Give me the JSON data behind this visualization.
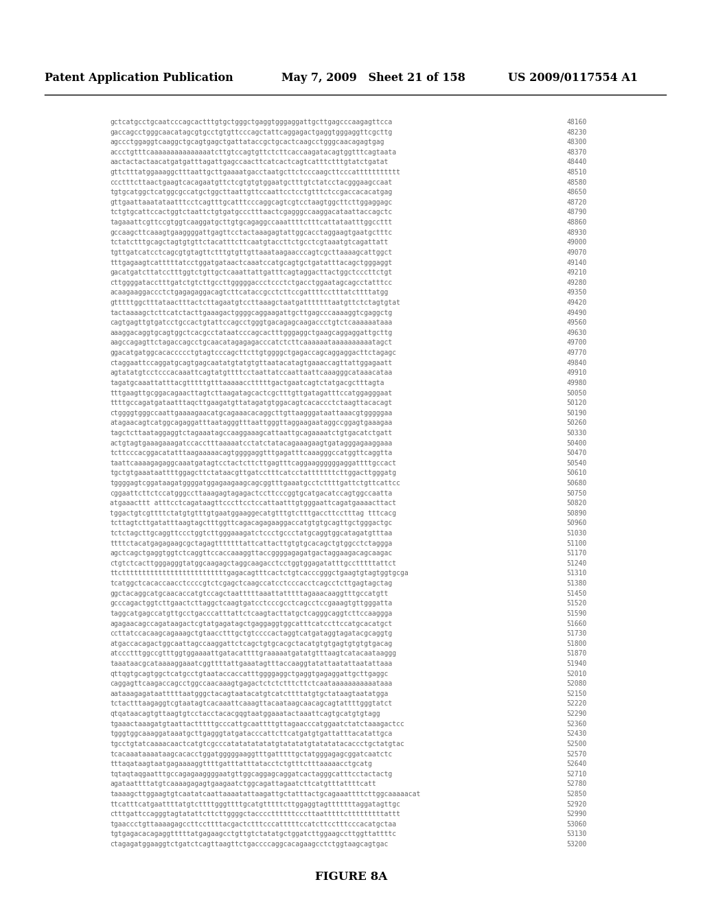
{
  "header_left": "Patent Application Publication",
  "header_mid": "May 7, 2009   Sheet 21 of 158",
  "header_right": "US 2009/0117554 A1",
  "figure_label": "FIGURE 8A",
  "sequences": [
    [
      "gctcatgcctgcaatcccagcactttgtgctgggctgaggtgggaggattgcttgagcccaagagttcca",
      "48160"
    ],
    [
      "gaccagcctgggcaacatagcgtgcctgtgttcccagctattcaggagactgaggtgggaggttcgcttg",
      "48230"
    ],
    [
      "agccctggaggtcaaggctgcagtgagctgattataccgctgcactcaagcctgggcaacagagtgag",
      "48300"
    ],
    [
      "accctgtttcaaaaaaaaaaaaaaatcttgtccagtgttctcttcaccaagatacagtggtttcagtaata",
      "48370"
    ],
    [
      "aactactactaacatgatgatttagattgagccaacttcatcactcagtcatttctttgtatctgatat",
      "48440"
    ],
    [
      "gttctttatggaaaggctttaattgcttgaaaatgacctaatgcttctcccaagcttcccattttttttttt",
      "48510"
    ],
    [
      "ccctttcttaactgaagtcacagaatgttctcgtgtgtggaatgctttgtctatcctacgggaagccaat",
      "48580"
    ],
    [
      "tgtgcatggctcatggcgccatgctggcttaattgttccaattcctcctgtttctccgaccacacatgag",
      "48650"
    ],
    [
      "gttgaattaaatataatttcctcagtttgcatttcccaggcagtcgtcctaagtggcttcttggaggagc",
      "48720"
    ],
    [
      "tctgtgcattccactggtctaattctgtgatgccctttaactcgagggccaaggacataattaccagctc",
      "48790"
    ],
    [
      "tagaaattcgttccgtggtcaaggatgcttgtgcagaggccaaattttctttcattataatttggccttt",
      "48860"
    ],
    [
      "gccaagcttcaaagtgaaggggattgagttcctactaaagagtattggcacctaggaagtgaatgctttc",
      "48930"
    ],
    [
      "tctatctttgcagctagtgtgttctacatttcttcaatgtaccttctgcctcgtaaatgtcagattatt",
      "49000"
    ],
    [
      "tgttgatcatcctcagcgtgtagttctttgtgttgttaaataagaacccagtcgcttaaaagcattggct",
      "49070"
    ],
    [
      "tttgagaagtcatttttatcctggatgataactcaaatccatgcagtgctgatatttacagctgggaggt",
      "49140"
    ],
    [
      "gacatgatcttatcctttggtctgttgctcaaattattgatttcagtaggacttactggctcccttctgt",
      "49210"
    ],
    [
      "cttggggatacctttgatctgtcttgccttgggggaccctccctctgacctggaatagcagcctatttcc",
      "49280"
    ],
    [
      "acaagaaggaccctctgagagaggacagtcttcataccgcctcttccgattttcctttatcttttatgg",
      "49350"
    ],
    [
      "gtttttggctttataactttactcttagaatgtccttaaagctaatgatttttttaatgttctctagtgtat",
      "49420"
    ],
    [
      "tactaaaagctcttcatctacttgaaagactggggcaggaagattgcttgagcccaaaaggtcgaggctg",
      "49490"
    ],
    [
      "cagtgagttgtgatcctgccactgtattccagcctgggtgacagagcaagaccctgtctcaaaaaataaa",
      "49560"
    ],
    [
      "aaaggacaggtgcagtggctcacgcctataatcccagcactttgggaggctgaagcaggaggattgcttg",
      "49630"
    ],
    [
      "aagccagagttctagaccagcctgcaacatagagagacccatctcttcaaaaaataaaaaaaaaatagct",
      "49700"
    ],
    [
      "ggacatgatggcacaccccctgtagtcccagcttcttgtggggctgagaccagcaggaggacttctagagc",
      "49770"
    ],
    [
      "ctaggaattccaggatgcagtgagcaatatgtatgtgttaatacatagtgaaaccagttattggagaatt",
      "49840"
    ],
    [
      "agtatatgtcctcccacaaattcagtatgttttcctaattatccaattaattcaaagggcataaacataa",
      "49910"
    ],
    [
      "tagatgcaaattatttacgtttttgtttaaaaacctttttgactgaatcagtctatgacgctttagta",
      "49980"
    ],
    [
      "tttgaagttgcggacagaacttagtcttaagatagcactcgctttgttgatagatttccatggagggaat",
      "50050"
    ],
    [
      "ttttgccagatgataatttaqcttgaagatgttatagatgtggacagtcacaccctctaagttacacagt",
      "50120"
    ],
    [
      "ctggggtgggccaattgaaaagaacatgcagaaacacaggcttgttaagggataattaaacgtgggggaa",
      "50190"
    ],
    [
      "atagaacagtcatggcagaggatttaatagggtttaattgggttaggaagaataggccggagtgaaagaa",
      "50260"
    ],
    [
      "tagctcttaataggaggtctagaaatagccaaggaaagcattaattgcagaaaatctgtgacatctgatt",
      "50330"
    ],
    [
      "actgtagtgaaagaaagatccacctttaaaaatcctatctatacagaaagaagtgatagggagaaggaaa",
      "50400"
    ],
    [
      "tcttcccacggacatatttaagaaaaacagtggggaggtttgagatttcaaagggccatggttcaggtta",
      "50470"
    ],
    [
      "taattcaaaagagaggcaaatgatagtcctactcttcttgagtttcaggaaggggggaggattttgccact",
      "50540"
    ],
    [
      "tgctgtgaaataattttggagcttctataacgttgatcctttcatcctatttttttcttggacttgggatg",
      "50610"
    ],
    [
      "tggggagtcggataagatggggatggagaagaagcagcggtttgaaatgcctcttttgattctgttcattcc",
      "50680"
    ],
    [
      "cggaattcttctccatgggccttaaagagtagagactccttcccggtgcatgacatccagtggccaatta",
      "50750"
    ],
    [
      "atgaaacttt atttcctcagataagttcccttcctccattaatttgtgggaattcagatgaaaacttact",
      "50820"
    ],
    [
      "tggactgtcgttttctatgtgtttgtgaatggaaggecatgtttgtctttgaccttcctttag tttcacg",
      "50890"
    ],
    [
      "tcttagtcttgatatttaagtagctttggttcagacagagaaggaccatgtgtgcagttgctgggactgc",
      "50960"
    ],
    [
      "tctctagcttgcaggttccctggtcttgggaaagatctccctgccctatgcaggtggcatagatgtttaa",
      "51030"
    ],
    [
      "ttttctacatgagagaagcgctagagtttttttattcattacttgtgtgcacagctgtggcctctaggga",
      "51100"
    ],
    [
      "agctcagctgaggtggtctcaggttccaccaaaggttaccggggagagatgactaggaagacagcaagac",
      "51170"
    ],
    [
      "ctgtctcacttgggagggtatggcaagagctaggcaagacctcctggtggagatatttgcctttttattct",
      "51240"
    ],
    [
      "ttcttttttttttttttttttttttttttgagacagtttcactctgtcacccgggctgaagtgtagtggtgcga",
      "51310"
    ],
    [
      "tcatggctcacaccaacctccccgtctcgagctcaagccatcctcccacctcagcctcttgagtagctag",
      "51380"
    ],
    [
      "ggctacaggcatgcaacaccatgtccagctaatttttaaattatttttagaaacaaggtttgccatgtt",
      "51450"
    ],
    [
      "gcccagactggtcttgaactcttaggctcaagtgatcctcccgcctcagcctccgaaagtgttgggatta",
      "51520"
    ],
    [
      "taggcatgagccatgttgcctgacccatttattctcaagtacttatgctcagggcaggtcttccaaggga",
      "51590"
    ],
    [
      "agagaacagccagataagactcgtatgagatagctgaggaggtggcatttcatccttccatgcacatgct",
      "51660"
    ],
    [
      "ccttatccacaagcagaaagctgtaacctttgctgtccccactaggtcatgataggtagatacgcaggtg",
      "51730"
    ],
    [
      "atgaccacagactggcaattagccaaggattctcagctgtgcacgctacatgtgtgagtgtgtgtgacag",
      "51800"
    ],
    [
      "atccctttggccgtttggtggaaaattgatacattttgraaaaatgatatgtttaagtcatacaataaggg",
      "51870"
    ],
    [
      "taaataacgcataaaaggaaatcggttttattgaaatagtttaccaaggtatattaatattaatattaaa",
      "51940"
    ],
    [
      "qttqgtgcagtggctcatgcctgtaataccaccatttggggaggctgaggtgagaggattgcttgaggc",
      "52010"
    ],
    [
      "caggagttcaagaccagcctggccaacaaagtgagactctctctttcttctcaataaaaaaaaaaataaa",
      "52080"
    ],
    [
      "aataaagagataatttttaatgggctacagtaatacatgtcatcttttatgtgctataagtaatatgga",
      "52150"
    ],
    [
      "tctactttaagaggtcgtaatagtcacaaattcaaagttacaataagcaacagcagtattttgggtatct",
      "52220"
    ],
    [
      "qtqataacagtgttaagtgtcctacctacacgqgtaatggaaatactaaattcagtgcatgtgtagg",
      "52290"
    ],
    [
      "tgaaactaaagatgtaattactttttgcccattgcaattttgttagaacccatggaatctatctaaagactcc",
      "52360"
    ],
    [
      "tgggtggcaaaggataaatgcttgagggtatgatacccattcttcatgatgtgattatttacatattgca",
      "52430"
    ],
    [
      "tgcctgtatcaaaacaactcatgtcgcccatatatatatatgtatatatgtatatatacaccctgctatgtac",
      "52500"
    ],
    [
      "tcacaaataaaataagcacacctggatgggggaaggtttgatttttgctatgggagagcggatcaatctc",
      "52570"
    ],
    [
      "tttaqataagtaatgagaaaaggttttgatttatttatacctctgtttctttaaaaacctgcatg",
      "52640"
    ],
    [
      "tqtaqtaqgaatttgccagagaaggggaatgttggcaggagcaggatcactagggcatttcctactactg",
      "52710"
    ],
    [
      "agataattttatgtcaaaagagagtgaagaatctggcagattagaatcttcatgtttattttcatt",
      "52780"
    ],
    [
      "taaaagcttggaagtgtcaatatcaattaaaatattaagattgctatttactgcagaaattttcttggcaaaaacat",
      "52850"
    ],
    [
      "ttcatttcatgaattttatgtcttttgggttttgcatgtttttcttggaggtagtttttttaggatagttgc",
      "52920"
    ],
    [
      "ctttgattccagggtagtatattcttcttggggctaccccttttttcccttaatttttctttttttttattt",
      "52990"
    ],
    [
      "tgaaccctgttaaaagagccttccttttacgactctttcccatttttccatcttcctttcccacatgctaa",
      "53060"
    ],
    [
      "tgtgagacacagaggtttttatgagaagcctgttgtctatatgctggatcttggaagccttggttattttc",
      "53130"
    ],
    [
      "ctagagatggaaggtctgatctcagttaagttctgaccccaggcacagaagcctctggtaagcagtgac",
      "53200"
    ]
  ]
}
